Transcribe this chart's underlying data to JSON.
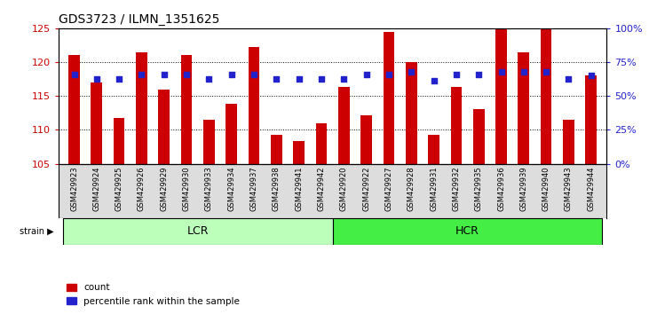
{
  "title": "GDS3723 / ILMN_1351625",
  "samples": [
    "GSM429923",
    "GSM429924",
    "GSM429925",
    "GSM429926",
    "GSM429929",
    "GSM429930",
    "GSM429933",
    "GSM429934",
    "GSM429937",
    "GSM429938",
    "GSM429941",
    "GSM429942",
    "GSM429920",
    "GSM429922",
    "GSM429927",
    "GSM429928",
    "GSM429931",
    "GSM429932",
    "GSM429935",
    "GSM429936",
    "GSM429939",
    "GSM429940",
    "GSM429943",
    "GSM429944"
  ],
  "counts": [
    121.1,
    117.0,
    111.7,
    121.5,
    116.0,
    121.1,
    111.5,
    113.8,
    122.2,
    109.3,
    108.4,
    110.9,
    116.3,
    112.1,
    124.5,
    120.0,
    109.2,
    116.4,
    113.0,
    124.9,
    121.4,
    124.8,
    111.5,
    118.0
  ],
  "percentiles": [
    118.2,
    117.5,
    117.5,
    118.2,
    118.2,
    118.2,
    117.5,
    118.2,
    118.2,
    117.5,
    117.5,
    117.5,
    117.5,
    118.2,
    118.2,
    118.5,
    117.2,
    118.2,
    118.2,
    118.5,
    118.5,
    118.5,
    117.5,
    118.0
  ],
  "ylim": [
    105,
    125
  ],
  "yticks": [
    105,
    110,
    115,
    120,
    125
  ],
  "y2ticks": [
    0,
    25,
    50,
    75,
    100
  ],
  "y2labels": [
    "0%",
    "25%",
    "50%",
    "75%",
    "100%"
  ],
  "lcr_count": 12,
  "hcr_count": 12,
  "bar_color": "#cc0000",
  "dot_color": "#2222cc",
  "lcr_color": "#bbffbb",
  "hcr_color": "#44ee44",
  "bg_color": "#ffffff",
  "tick_bg_color": "#dddddd",
  "label_color_red": "#cc0000",
  "label_color_blue": "#2222cc"
}
